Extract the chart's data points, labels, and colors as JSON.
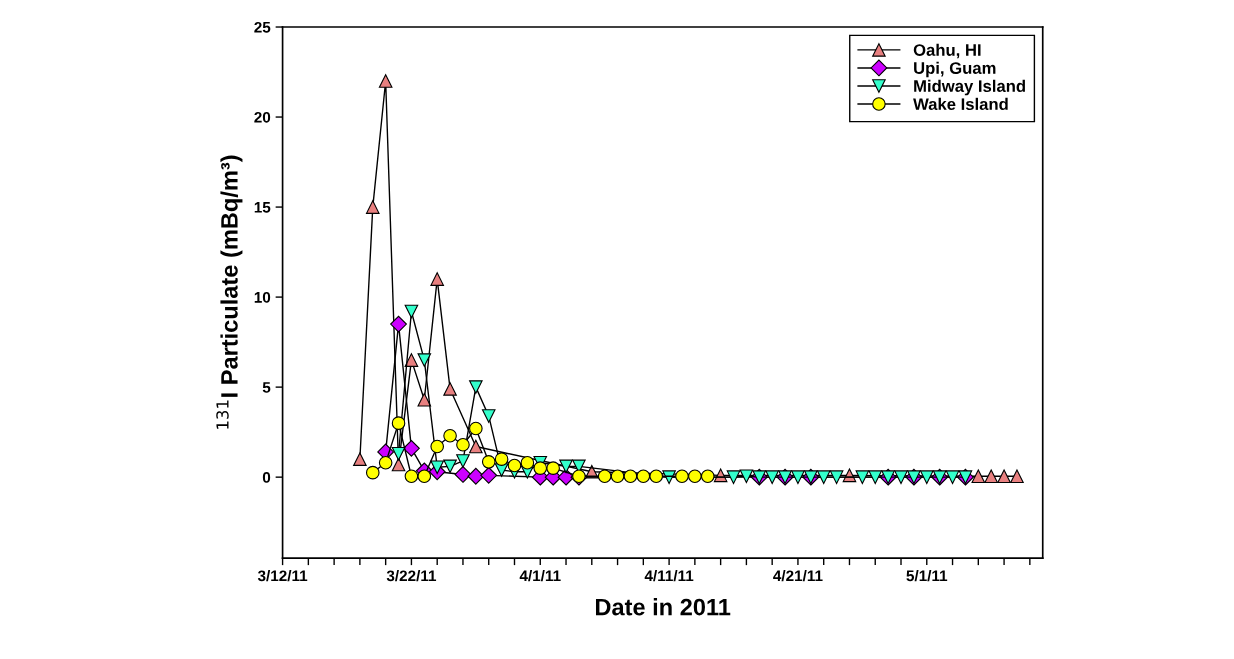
{
  "chart_data": {
    "type": "line",
    "xlabel": "Date in 2011",
    "ylabel": "$^{131}$I Particulate (mBq/m³)",
    "xlim": [
      "2011-03-12",
      "2011-05-10"
    ],
    "ylim": [
      -4.5,
      25
    ],
    "yticks": [
      0,
      5,
      10,
      15,
      20,
      25
    ],
    "xticks": [
      {
        "value": "2011-03-12",
        "label": "3/12/11"
      },
      {
        "value": "2011-03-14",
        "label": null
      },
      {
        "value": "2011-03-16",
        "label": null
      },
      {
        "value": "2011-03-18",
        "label": null
      },
      {
        "value": "2011-03-20",
        "label": null
      },
      {
        "value": "2011-03-22",
        "label": "3/22/11"
      },
      {
        "value": "2011-03-24",
        "label": null
      },
      {
        "value": "2011-03-26",
        "label": null
      },
      {
        "value": "2011-03-28",
        "label": null
      },
      {
        "value": "2011-03-30",
        "label": null
      },
      {
        "value": "2011-04-01",
        "label": "4/1/11"
      },
      {
        "value": "2011-04-03",
        "label": null
      },
      {
        "value": "2011-04-05",
        "label": null
      },
      {
        "value": "2011-04-07",
        "label": null
      },
      {
        "value": "2011-04-09",
        "label": null
      },
      {
        "value": "2011-04-11",
        "label": "4/11/11"
      },
      {
        "value": "2011-04-13",
        "label": null
      },
      {
        "value": "2011-04-15",
        "label": null
      },
      {
        "value": "2011-04-17",
        "label": null
      },
      {
        "value": "2011-04-19",
        "label": null
      },
      {
        "value": "2011-04-21",
        "label": "4/21/11"
      },
      {
        "value": "2011-04-23",
        "label": null
      },
      {
        "value": "2011-04-25",
        "label": null
      },
      {
        "value": "2011-04-27",
        "label": null
      },
      {
        "value": "2011-04-29",
        "label": null
      },
      {
        "value": "2011-05-01",
        "label": "5/1/11"
      },
      {
        "value": "2011-05-03",
        "label": null
      },
      {
        "value": "2011-05-05",
        "label": null
      },
      {
        "value": "2011-05-07",
        "label": null
      },
      {
        "value": "2011-05-09",
        "label": null
      }
    ],
    "grid": false,
    "legend": "top right",
    "line_style": "solid",
    "series": [
      {
        "name": "Oahu, HI",
        "color": "#e88080",
        "marker": "triangle",
        "x": [
          "2011-03-18",
          "2011-03-19",
          "2011-03-20",
          "2011-03-21",
          "2011-03-22",
          "2011-03-23",
          "2011-03-24",
          "2011-03-25",
          "2011-03-27",
          "2011-04-05",
          "2011-04-15",
          "2011-04-25",
          "2011-05-05",
          "2011-05-06",
          "2011-05-07",
          "2011-05-08"
        ],
        "values": [
          1.0,
          15,
          22,
          0.7,
          6.5,
          4.3,
          11,
          4.9,
          1.7,
          0.3,
          0.1,
          0.1,
          0.05,
          0.05,
          0.05,
          0.05
        ]
      },
      {
        "name": "Upi, Guam",
        "color": "#cc00ff",
        "marker": "diamond",
        "x": [
          "2011-03-20",
          "2011-03-21",
          "2011-03-22",
          "2011-03-23",
          "2011-03-24",
          "2011-03-26",
          "2011-03-27",
          "2011-03-28",
          "2011-04-01",
          "2011-04-02",
          "2011-04-03",
          "2011-04-04",
          "2011-04-18",
          "2011-04-20",
          "2011-04-22",
          "2011-04-28",
          "2011-04-30",
          "2011-05-02",
          "2011-05-04"
        ],
        "values": [
          1.4,
          8.5,
          1.6,
          0.35,
          0.3,
          0.15,
          0.05,
          0.1,
          0,
          0,
          0,
          0,
          0,
          0,
          0,
          0,
          0,
          0,
          0
        ]
      },
      {
        "name": "Midway Island",
        "color": "#33ffcc",
        "marker": "triangle_down",
        "x": [
          "2011-03-21",
          "2011-03-22",
          "2011-03-23",
          "2011-03-24",
          "2011-03-25",
          "2011-03-26",
          "2011-03-27",
          "2011-03-28",
          "2011-03-29",
          "2011-03-30",
          "2011-03-31",
          "2011-04-01",
          "2011-04-03",
          "2011-04-04",
          "2011-04-11",
          "2011-04-16",
          "2011-04-17",
          "2011-04-18",
          "2011-04-19",
          "2011-04-20",
          "2011-04-21",
          "2011-04-22",
          "2011-04-23",
          "2011-04-24",
          "2011-04-26",
          "2011-04-27",
          "2011-04-28",
          "2011-04-29",
          "2011-04-30",
          "2011-05-01",
          "2011-05-02",
          "2011-05-03",
          "2011-05-04"
        ],
        "values": [
          1.3,
          9.2,
          6.5,
          0.55,
          0.6,
          0.9,
          5.0,
          3.4,
          0.4,
          0.3,
          0.3,
          0.8,
          0.6,
          0.6,
          0,
          0,
          0.05,
          0,
          0,
          0,
          0,
          0,
          0,
          0,
          0,
          0,
          0,
          0,
          0,
          0,
          0,
          0,
          0
        ]
      },
      {
        "name": "Wake Island",
        "color": "#ffff00",
        "marker": "circle",
        "x": [
          "2011-03-19",
          "2011-03-20",
          "2011-03-21",
          "2011-03-22",
          "2011-03-23",
          "2011-03-24",
          "2011-03-25",
          "2011-03-26",
          "2011-03-27",
          "2011-03-28",
          "2011-03-29",
          "2011-03-30",
          "2011-03-31",
          "2011-04-01",
          "2011-04-02",
          "2011-04-04",
          "2011-04-06",
          "2011-04-07",
          "2011-04-08",
          "2011-04-09",
          "2011-04-10",
          "2011-04-12",
          "2011-04-13",
          "2011-04-14"
        ],
        "values": [
          0.25,
          0.8,
          3.0,
          0.05,
          0.05,
          1.7,
          2.3,
          1.8,
          2.7,
          0.85,
          1.0,
          0.65,
          0.8,
          0.5,
          0.5,
          0.05,
          0.05,
          0.05,
          0.05,
          0.05,
          0.05,
          0.05,
          0.05,
          0.05
        ]
      }
    ]
  }
}
